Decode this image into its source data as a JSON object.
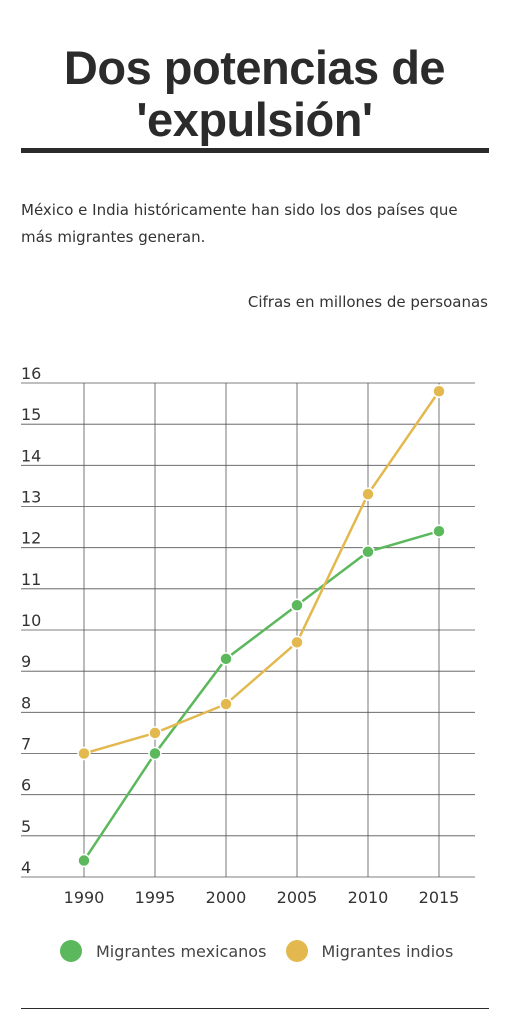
{
  "header": {
    "title_line1": "Dos potencias de",
    "title_line2": "'expulsión'",
    "description": "México e India históricamente han sido los dos países que más migrantes generan.",
    "units_note": "Cifras en millones de persoanas"
  },
  "chart_data": {
    "type": "line",
    "x": [
      1990,
      1995,
      2000,
      2005,
      2010,
      2015
    ],
    "x_tick_labels": [
      "1990",
      "1995",
      "2000",
      "2005",
      "2010",
      "2015"
    ],
    "y_tick_labels": [
      "4",
      "5",
      "6",
      "7",
      "8",
      "9",
      "10",
      "11",
      "12",
      "13",
      "14",
      "15",
      "16"
    ],
    "ylim": [
      4,
      16
    ],
    "grid": true,
    "legend_position": "bottom",
    "series": [
      {
        "name": "Migrantes mexicanos",
        "color": "#5cb85c",
        "values": [
          4.4,
          7.0,
          9.3,
          10.6,
          11.9,
          12.4
        ]
      },
      {
        "name": "Migrantes indios",
        "color": "#e3b94f",
        "values": [
          7.0,
          7.5,
          8.2,
          9.7,
          13.3,
          15.8
        ]
      }
    ]
  }
}
